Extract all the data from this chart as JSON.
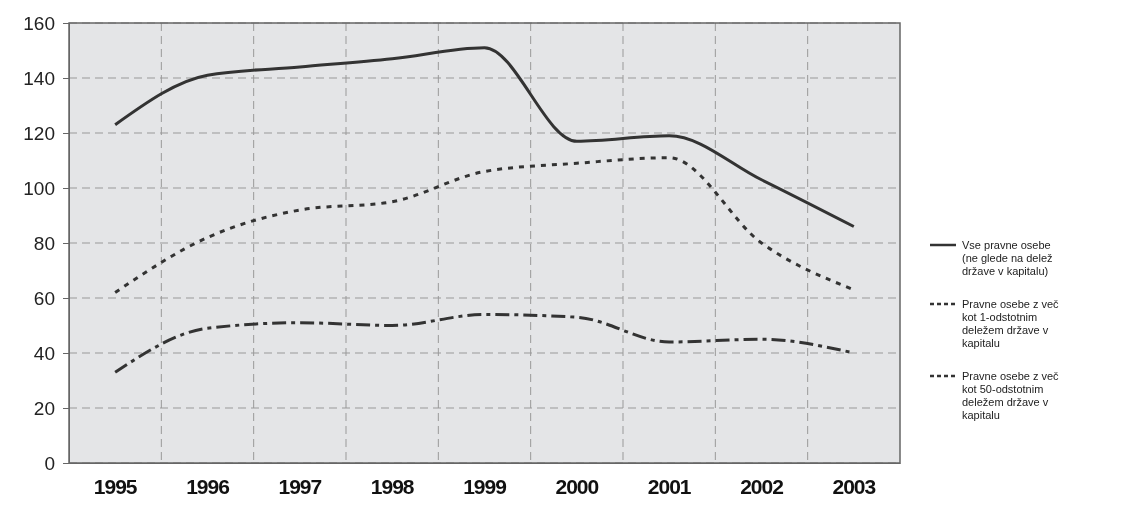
{
  "chart_data": {
    "type": "line",
    "categories": [
      "1995",
      "1996",
      "1997",
      "1998",
      "1999",
      "2000",
      "2001",
      "2002",
      "2003"
    ],
    "series": [
      {
        "name": "Vse pravne osebe (ne glede na delež države v kapitalu)",
        "color": "#333333",
        "line_style": "solid",
        "values": [
          123,
          141,
          144,
          147,
          151,
          117,
          119,
          103,
          86
        ]
      },
      {
        "name": "Pravne osebe z več kot 1-odstotnim deležem države v kapitalu",
        "color": "#333333",
        "line_style": "dotted",
        "values": [
          62,
          82,
          92,
          95,
          106,
          109,
          111,
          80,
          63
        ]
      },
      {
        "name": "Pravne osebe z več kot 50-odstotnim deležem države v kapitalu",
        "color": "#333333",
        "line_style": "dashed",
        "values": [
          33,
          49,
          51,
          50,
          54,
          53,
          44,
          45,
          40
        ]
      }
    ],
    "ylim": [
      0,
      160
    ],
    "yticks": [
      0,
      20,
      40,
      60,
      80,
      100,
      120,
      140,
      160
    ],
    "grid": true,
    "legend": "right",
    "marker": "none"
  }
}
